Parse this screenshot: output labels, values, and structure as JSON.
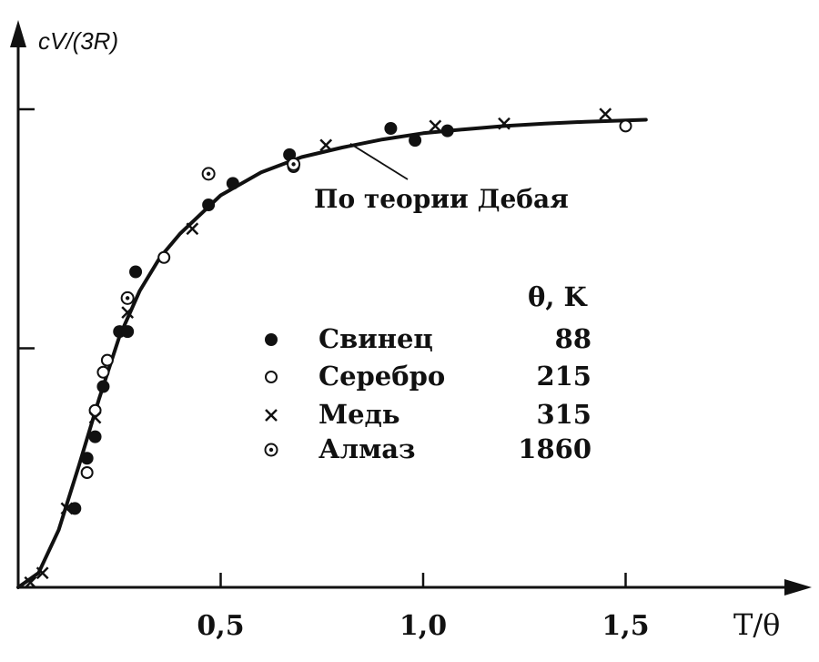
{
  "chart_data": {
    "type": "scatter",
    "xlabel": "T/θ",
    "ylabel": "cV/(3R)",
    "xlim": [
      0,
      1.75
    ],
    "ylim": [
      0,
      1.06
    ],
    "x_ticks": [
      0.5,
      1.0,
      1.5
    ],
    "x_tick_labels": [
      "0,5",
      "1,0",
      "1,5"
    ],
    "y_ticks": [
      0.5,
      1.0
    ],
    "grid": false,
    "curve_label": "По теории Дебая",
    "legend_header": "θ, K",
    "legend_placement": "center-right",
    "series": [
      {
        "name": "Свинец",
        "theta": "88",
        "marker": "filled-circle",
        "points": [
          [
            0.14,
            0.165
          ],
          [
            0.17,
            0.27
          ],
          [
            0.19,
            0.315
          ],
          [
            0.21,
            0.42
          ],
          [
            0.25,
            0.535
          ],
          [
            0.27,
            0.535
          ],
          [
            0.29,
            0.66
          ],
          [
            0.47,
            0.8
          ],
          [
            0.53,
            0.845
          ],
          [
            0.67,
            0.905
          ],
          [
            0.92,
            0.96
          ],
          [
            0.98,
            0.935
          ],
          [
            1.06,
            0.955
          ]
        ]
      },
      {
        "name": "Серебро",
        "theta": "215",
        "marker": "open-circle",
        "points": [
          [
            0.17,
            0.24
          ],
          [
            0.19,
            0.37
          ],
          [
            0.21,
            0.45
          ],
          [
            0.22,
            0.475
          ],
          [
            0.36,
            0.69
          ],
          [
            0.68,
            0.88
          ],
          [
            1.5,
            0.965
          ]
        ]
      },
      {
        "name": "Медь",
        "theta": "315",
        "marker": "cross",
        "points": [
          [
            0.03,
            0.01
          ],
          [
            0.06,
            0.03
          ],
          [
            0.12,
            0.165
          ],
          [
            0.19,
            0.355
          ],
          [
            0.27,
            0.575
          ],
          [
            0.43,
            0.75
          ],
          [
            0.76,
            0.925
          ],
          [
            1.03,
            0.965
          ],
          [
            1.2,
            0.97
          ],
          [
            1.45,
            0.99
          ]
        ]
      },
      {
        "name": "Алмаз",
        "theta": "1860",
        "marker": "dotted-circle",
        "points": [
          [
            0.27,
            0.605
          ],
          [
            0.47,
            0.865
          ],
          [
            0.68,
            0.885
          ]
        ]
      }
    ],
    "debye_curve": {
      "x": [
        0,
        0.05,
        0.1,
        0.15,
        0.2,
        0.25,
        0.3,
        0.35,
        0.4,
        0.5,
        0.6,
        0.7,
        0.8,
        0.9,
        1.0,
        1.1,
        1.2,
        1.3,
        1.4,
        1.55
      ],
      "y": [
        0,
        0.03,
        0.12,
        0.255,
        0.395,
        0.525,
        0.62,
        0.69,
        0.74,
        0.82,
        0.868,
        0.9,
        0.92,
        0.937,
        0.95,
        0.958,
        0.965,
        0.97,
        0.974,
        0.978
      ]
    }
  }
}
